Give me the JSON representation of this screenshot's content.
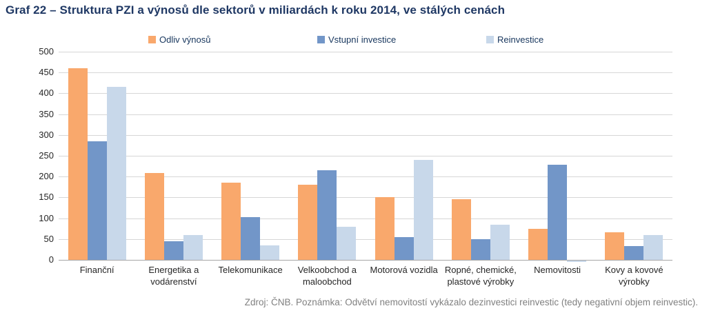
{
  "title": "Graf 22 – Struktura PZI a výnosů dle sektorů v miliardách k roku 2014, ve stálých cenách",
  "footer": "Zdroj: ČNB. Poznámka: Odvětví nemovitostí vykázalo dezinvestici reinvestic (tedy negativní objem reinvestic).",
  "colors": {
    "title_navy": "#1F3864",
    "legend_text": "#17365D",
    "axis_text": "#262626",
    "footer_gray": "#808080",
    "gridline": "#D6D6D6",
    "zero_axis": "#A6A6A6"
  },
  "chart_data": {
    "type": "bar",
    "title": "Graf 22 – Struktura PZI a výnosů dle sektorů v miliardách k roku 2014, ve stálých cenách",
    "categories": [
      "Finanční",
      "Energetika a vodárenství",
      "Telekomunikace",
      "Velkoobchod a maloobchod",
      "Motorová vozidla",
      "Ropné, chemické, plastové výrobky",
      "Nemovitosti",
      "Kovy a kovové výrobky"
    ],
    "series": [
      {
        "name": "Odliv výnosů",
        "color": "#F9A86C",
        "values": [
          460,
          208,
          185,
          180,
          150,
          146,
          75,
          66
        ]
      },
      {
        "name": "Vstupní investice",
        "color": "#7296C8",
        "values": [
          285,
          44,
          103,
          215,
          54,
          50,
          228,
          33
        ]
      },
      {
        "name": "Reinvestice",
        "color": "#C8D8EA",
        "values": [
          415,
          59,
          34,
          80,
          240,
          85,
          -4,
          60
        ]
      }
    ],
    "xlabel": "",
    "ylabel": "",
    "ylim": [
      0,
      500
    ],
    "ytick_step": 50,
    "grid": true,
    "legend_position": "top",
    "note": "Odvětví nemovitostí vykázalo dezinvestici reinvestic (tedy negativní objem reinvestic)."
  }
}
